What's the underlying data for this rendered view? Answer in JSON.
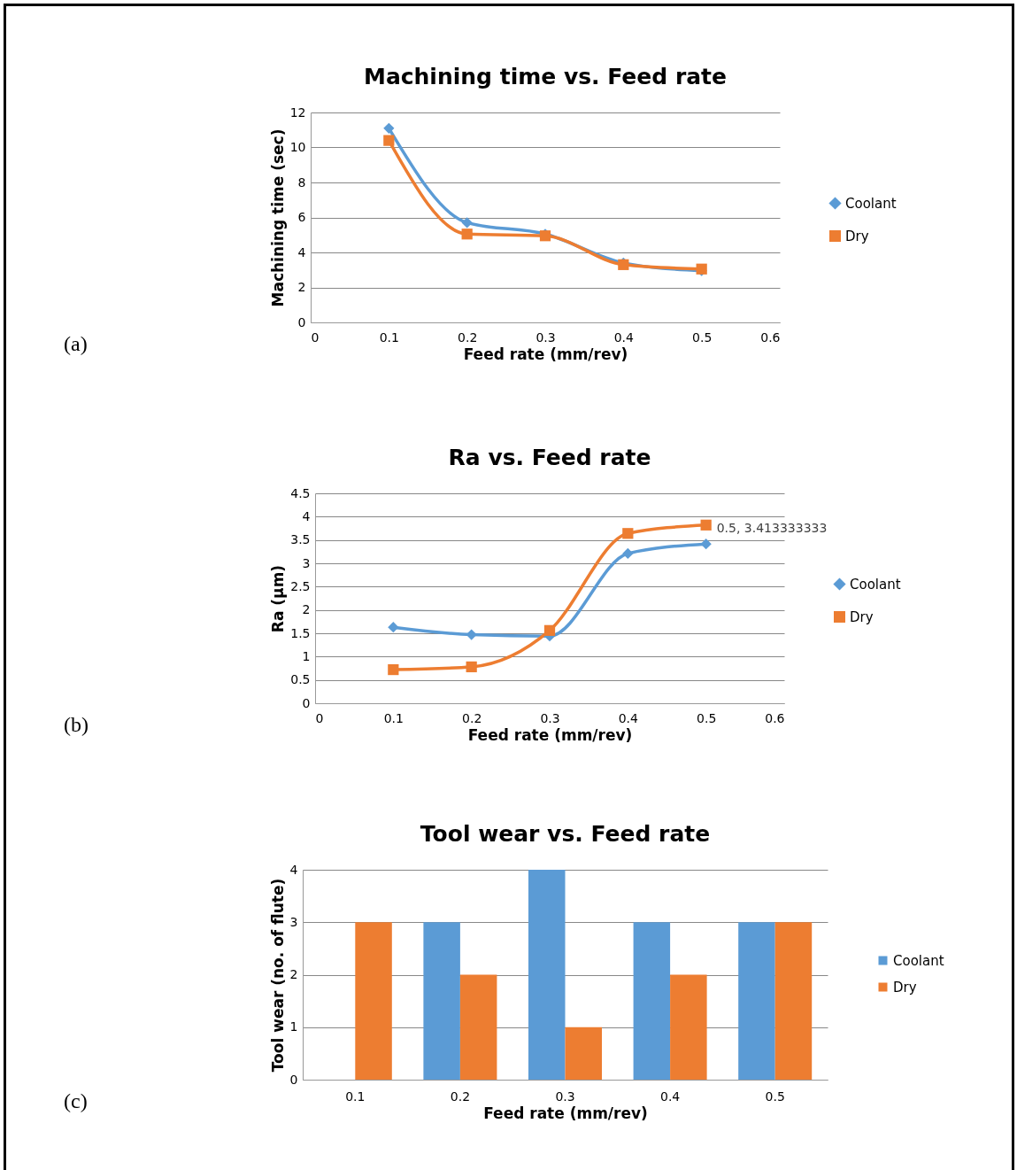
{
  "chart_data": [
    {
      "type": "line",
      "title": "Machining time vs. Feed rate",
      "xlabel": "Feed rate (mm/rev)",
      "ylabel": "Machining time (sec)",
      "x": [
        0.1,
        0.2,
        0.3,
        0.4,
        0.5
      ],
      "xlim": [
        0,
        0.6
      ],
      "xticks": [
        0,
        0.1,
        0.2,
        0.3,
        0.4,
        0.5,
        0.6
      ],
      "ylim": [
        0,
        12
      ],
      "yticks": [
        0,
        2,
        4,
        6,
        8,
        10,
        12
      ],
      "grid": "y",
      "legend": "right",
      "annotations": [
        "(a)"
      ],
      "series": [
        {
          "name": "Coolant",
          "color": "#5b9bd5",
          "marker": "diamond",
          "values": [
            11.1,
            5.7,
            5.05,
            3.4,
            2.95
          ]
        },
        {
          "name": "Dry",
          "color": "#ed7d31",
          "marker": "square",
          "values": [
            10.4,
            5.05,
            4.95,
            3.3,
            3.05
          ]
        }
      ]
    },
    {
      "type": "line",
      "title": "Ra vs. Feed rate",
      "xlabel": "Feed rate (mm/rev)",
      "ylabel": "Ra (µm)",
      "x": [
        0.1,
        0.2,
        0.3,
        0.4,
        0.5
      ],
      "xlim": [
        0,
        0.6
      ],
      "xticks": [
        0,
        0.1,
        0.2,
        0.3,
        0.4,
        0.5,
        0.6
      ],
      "ylim": [
        0,
        4.5
      ],
      "yticks": [
        0,
        0.5,
        1,
        1.5,
        2,
        2.5,
        3,
        3.5,
        4,
        4.5
      ],
      "grid": "y",
      "legend": "right",
      "annotations": [
        "(b)",
        {
          "text": "0.5, 3.413333333",
          "x": 0.5,
          "y": 3.413333333
        }
      ],
      "series": [
        {
          "name": "Coolant",
          "color": "#5b9bd5",
          "marker": "diamond",
          "values": [
            1.63,
            1.47,
            1.44,
            3.21,
            3.413333333
          ]
        },
        {
          "name": "Dry",
          "color": "#ed7d31",
          "marker": "square",
          "values": [
            0.72,
            0.78,
            1.56,
            3.64,
            3.82
          ]
        }
      ]
    },
    {
      "type": "bar",
      "title": "Tool wear vs. Feed rate",
      "xlabel": "Feed rate (mm/rev)",
      "ylabel": "Tool wear (no. of flute)",
      "categories": [
        "0.1",
        "0.2",
        "0.3",
        "0.4",
        "0.5"
      ],
      "ylim": [
        0,
        4
      ],
      "yticks": [
        0,
        1,
        2,
        3,
        4
      ],
      "grid": "y",
      "legend": "right",
      "annotations": [
        "(c)"
      ],
      "series": [
        {
          "name": "Coolant",
          "color": "#5b9bd5",
          "values": [
            0,
            3,
            4,
            3,
            3
          ]
        },
        {
          "name": "Dry",
          "color": "#ed7d31",
          "values": [
            3,
            2,
            1,
            2,
            3
          ]
        }
      ]
    }
  ]
}
